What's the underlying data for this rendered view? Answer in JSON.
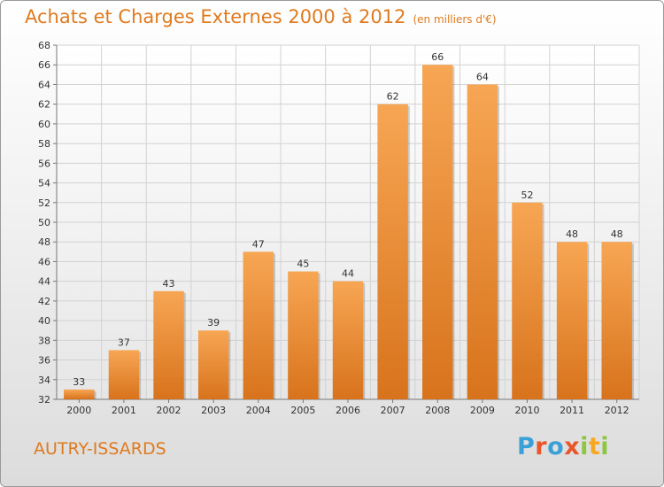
{
  "header": {
    "title": "Achats et Charges Externes 2000 à 2012",
    "unit": "(en milliers d'€)"
  },
  "footer": {
    "commune": "AUTRY-ISSARDS",
    "logo": [
      "P",
      "r",
      "o",
      "x",
      "i",
      "t",
      "i"
    ]
  },
  "colors": {
    "bar_top": "#f7a654",
    "bar_bottom": "#d8731c",
    "grid": "#d2d2d2",
    "title": "#e07a1e"
  },
  "chart_data": {
    "type": "bar",
    "title": "Achats et Charges Externes 2000 à 2012",
    "subtitle": "(en milliers d'€)",
    "xlabel": "",
    "ylabel": "",
    "categories": [
      "2000",
      "2001",
      "2002",
      "2003",
      "2004",
      "2005",
      "2006",
      "2007",
      "2008",
      "2009",
      "2010",
      "2011",
      "2012"
    ],
    "values": [
      33,
      37,
      43,
      39,
      47,
      45,
      44,
      62,
      66,
      64,
      52,
      48,
      48
    ],
    "ylim": [
      32,
      68
    ],
    "yticks": [
      32,
      34,
      36,
      38,
      40,
      42,
      44,
      46,
      48,
      50,
      52,
      54,
      56,
      58,
      60,
      62,
      64,
      66,
      68
    ],
    "grid": true,
    "legend": "none"
  }
}
